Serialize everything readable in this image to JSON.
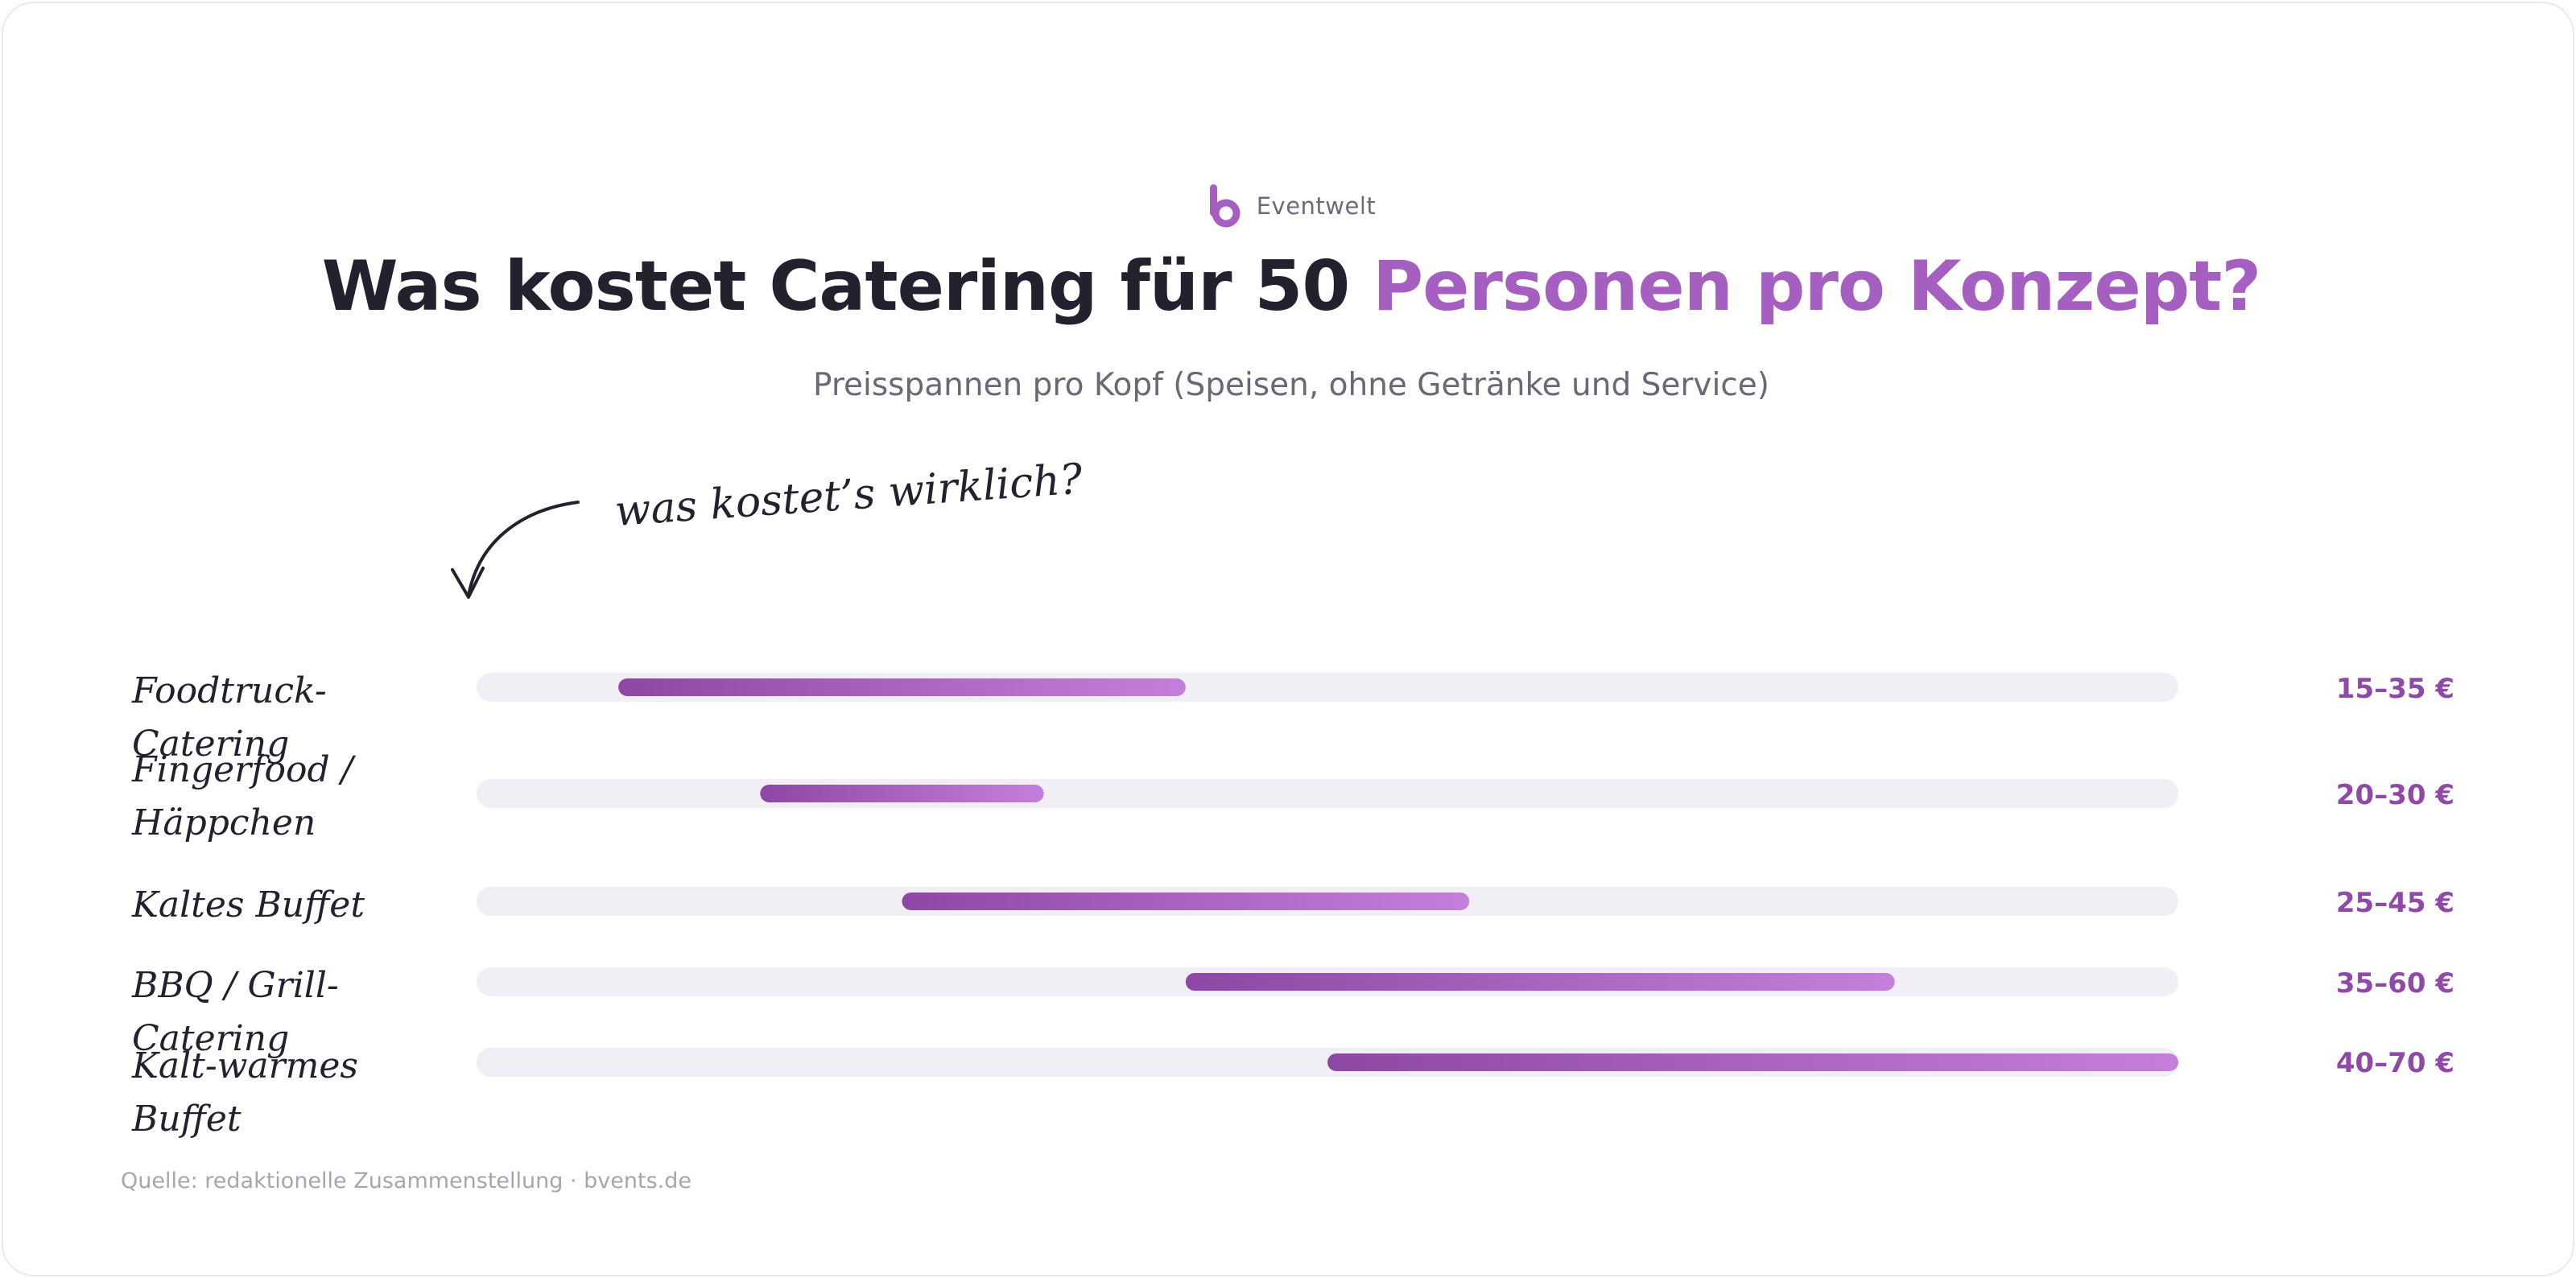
{
  "brand": {
    "name": "Eventwelt",
    "logo_icon": "b-logo-icon",
    "logo_color": "#a55fc0"
  },
  "header": {
    "title_main": "Was kostet Catering für 50 ",
    "title_accent": "Personen pro Konzept?",
    "subtitle": "Preisspannen pro Kopf (Speisen, ohne Getränke und Service)"
  },
  "annotation": {
    "note": "was kostet’s wirklich?",
    "arrow_icon": "hand-drawn-arrow-icon"
  },
  "footer": {
    "source": "Quelle: redaktionelle Zusammenstellung · bvents.de"
  },
  "colors": {
    "track": "#f1eef5",
    "bar_start": "#8d48a6",
    "bar_end": "#c47fdc",
    "value_text": "#8f4aa7",
    "title_dark": "#24202e",
    "title_accent": "#a55fc0"
  },
  "chart_data": {
    "type": "bar",
    "orientation": "horizontal-range",
    "unit": "€ pro Kopf",
    "xlim": [
      10,
      70
    ],
    "categories": [
      "Foodtruck-Catering",
      "Fingerfood / Häppchen",
      "Kaltes Buffet",
      "BBQ / Grill-Catering",
      "Kalt-warmes Buffet"
    ],
    "label_lines": [
      [
        "Foodtruck-Catering"
      ],
      [
        "Fingerfood /",
        "Häppchen"
      ],
      [
        "Kaltes Buffet"
      ],
      [
        "BBQ / Grill-Catering"
      ],
      [
        "Kalt-warmes Buffet"
      ]
    ],
    "series": [
      {
        "low": [
          15,
          20,
          25,
          35,
          40
        ],
        "high": [
          35,
          30,
          45,
          60,
          70
        ]
      }
    ],
    "value_labels": [
      "15–35 €",
      "20–30 €",
      "25–45 €",
      "35–60 €",
      "40–70 €"
    ],
    "grid": false,
    "legend": "none"
  }
}
